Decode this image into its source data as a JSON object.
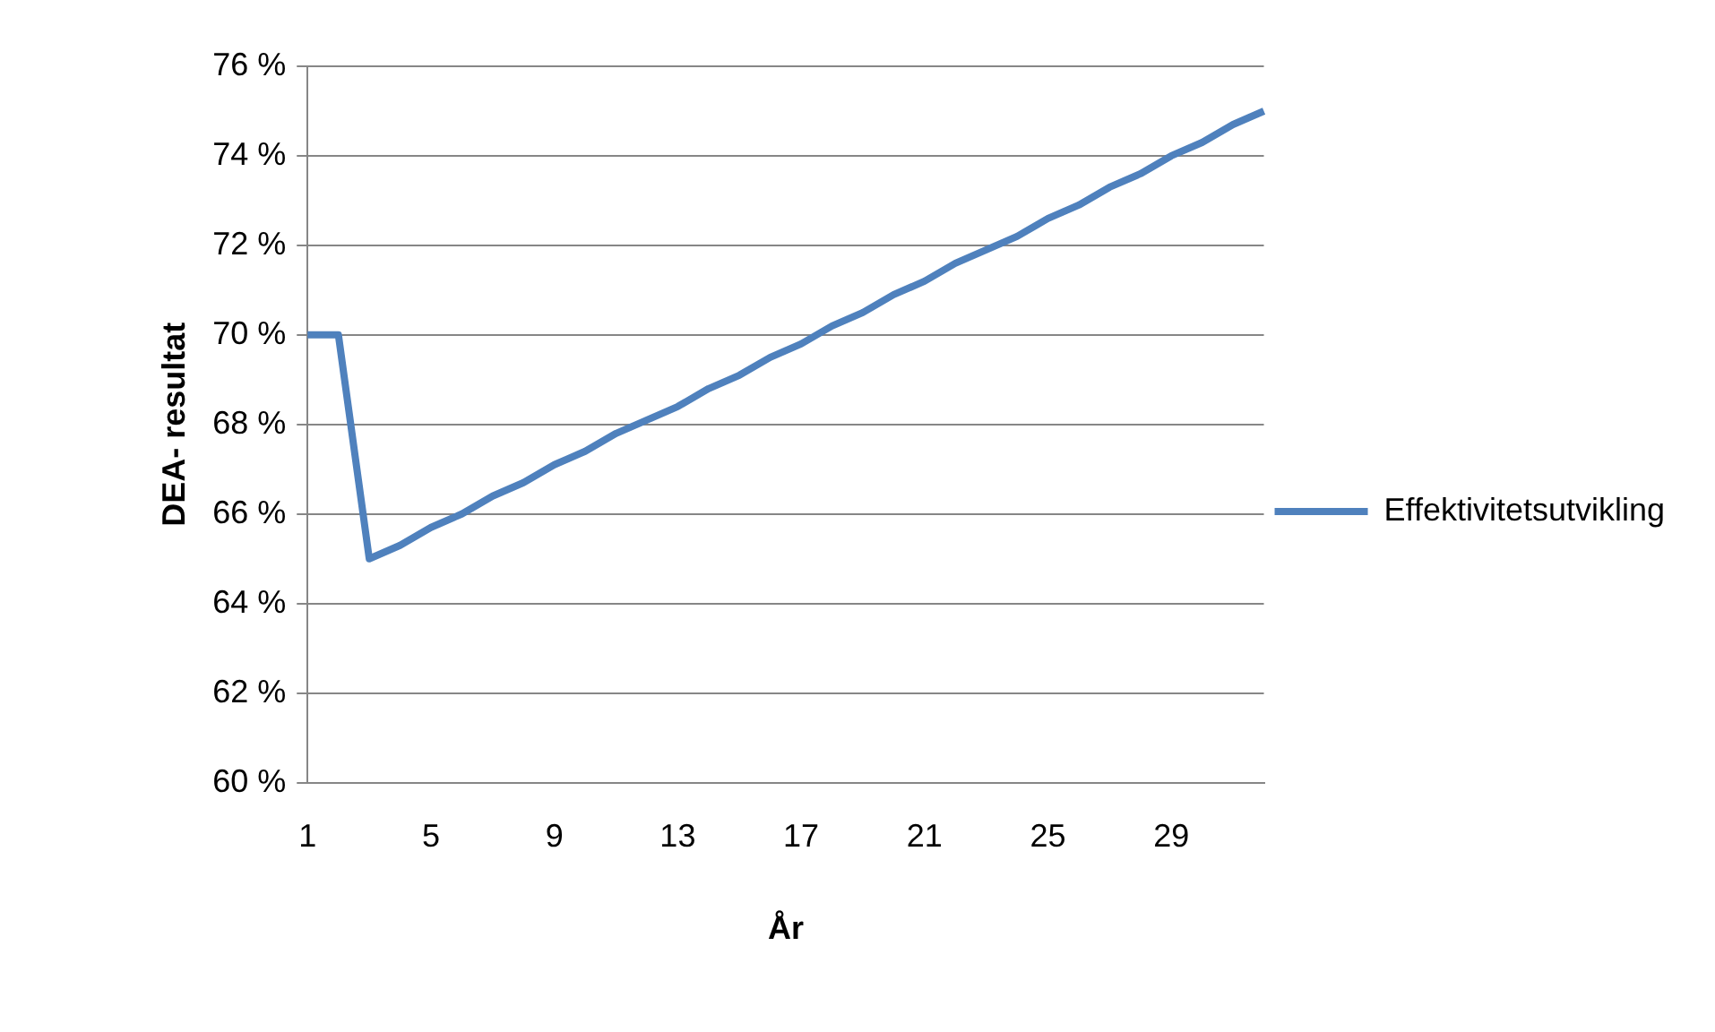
{
  "chart_data": {
    "type": "line",
    "xlabel": "År",
    "ylabel": "DEA- resultat",
    "categories": [
      "1",
      null,
      null,
      null,
      "5",
      null,
      null,
      null,
      "9",
      null,
      null,
      null,
      "13",
      null,
      null,
      null,
      "17",
      null,
      null,
      null,
      "21",
      null,
      null,
      null,
      "25",
      null,
      null,
      null,
      "29",
      null,
      null,
      null
    ],
    "series": [
      {
        "name": "Effektivitetsutvikling",
        "color": "#4f81bd",
        "values": [
          70,
          70,
          65,
          65.3,
          65.7,
          66.0,
          66.4,
          66.7,
          67.1,
          67.4,
          67.8,
          68.1,
          68.4,
          68.8,
          69.1,
          69.5,
          69.8,
          70.2,
          70.5,
          70.9,
          71.2,
          71.6,
          71.9,
          72.2,
          72.6,
          72.9,
          73.3,
          73.6,
          74.0,
          74.3,
          74.7,
          75
        ]
      }
    ],
    "ylim": [
      60,
      76
    ],
    "yticks": [
      {
        "value": 60,
        "label": "60 %"
      },
      {
        "value": 62,
        "label": "62 %"
      },
      {
        "value": 64,
        "label": "64 %"
      },
      {
        "value": 66,
        "label": "66 %"
      },
      {
        "value": 68,
        "label": "68 %"
      },
      {
        "value": 70,
        "label": "70 %"
      },
      {
        "value": 72,
        "label": "72 %"
      },
      {
        "value": 74,
        "label": "74 %"
      },
      {
        "value": 76,
        "label": "76 %"
      }
    ],
    "grid": "y",
    "legend": "right",
    "marker": "none",
    "line_style": "solid"
  }
}
